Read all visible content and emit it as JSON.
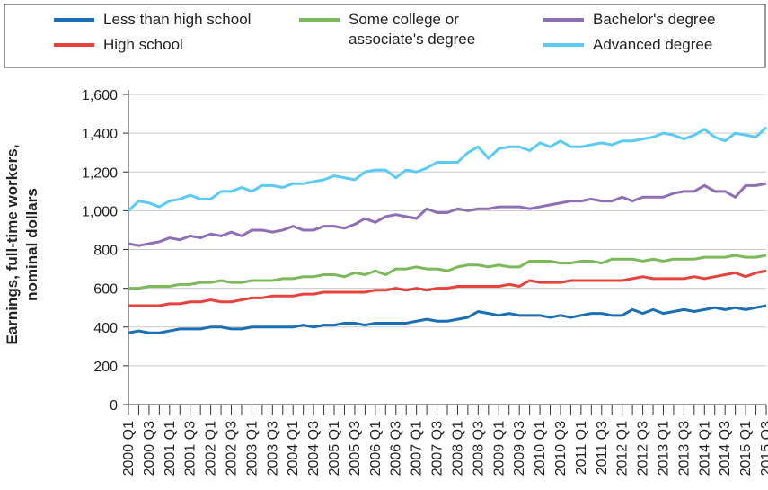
{
  "chart_data": {
    "type": "line",
    "y_label": "Earnings, full-time workers, nominal dollars",
    "categories": [
      "2000 Q1",
      null,
      "2000 Q3",
      null,
      "2001 Q1",
      null,
      "2001 Q3",
      null,
      "2002 Q1",
      null,
      "2002 Q3",
      null,
      "2003 Q1",
      null,
      "2003 Q3",
      null,
      "2004 Q1",
      null,
      "2004 Q3",
      null,
      "2005 Q1",
      null,
      "2005 Q3",
      null,
      "2006 Q1",
      null,
      "2006 Q3",
      null,
      "2007 Q1",
      null,
      "2007 Q3",
      null,
      "2008 Q1",
      null,
      "2008 Q3",
      null,
      "2009 Q1",
      null,
      "2009 Q3",
      null,
      "2010 Q1",
      null,
      "2010 Q3",
      null,
      "2011 Q1",
      null,
      "2011 Q3",
      null,
      "2012 Q1",
      null,
      "2012 Q3",
      null,
      "2013 Q1",
      null,
      "2013 Q3",
      null,
      "2014 Q1",
      null,
      "2014 Q3",
      null,
      "2015 Q1",
      null,
      "2015 Q3"
    ],
    "series": [
      {
        "name": "Less than high school",
        "color": "#1a6fb5",
        "values": [
          370,
          380,
          370,
          370,
          380,
          390,
          390,
          390,
          400,
          400,
          390,
          390,
          400,
          400,
          400,
          400,
          400,
          410,
          400,
          410,
          410,
          420,
          420,
          410,
          420,
          420,
          420,
          420,
          430,
          440,
          430,
          430,
          440,
          450,
          480,
          470,
          460,
          470,
          460,
          460,
          460,
          450,
          460,
          450,
          460,
          470,
          470,
          460,
          460,
          490,
          470,
          490,
          470,
          480,
          490,
          480,
          490,
          500,
          490,
          500,
          490,
          500,
          510
        ]
      },
      {
        "name": "High school",
        "color": "#e8423f",
        "values": [
          510,
          510,
          510,
          510,
          520,
          520,
          530,
          530,
          540,
          530,
          530,
          540,
          550,
          550,
          560,
          560,
          560,
          570,
          570,
          580,
          580,
          580,
          580,
          580,
          590,
          590,
          600,
          590,
          600,
          590,
          600,
          600,
          610,
          610,
          610,
          610,
          610,
          620,
          610,
          640,
          630,
          630,
          630,
          640,
          640,
          640,
          640,
          640,
          640,
          650,
          660,
          650,
          650,
          650,
          650,
          660,
          650,
          660,
          670,
          680,
          660,
          680,
          690
        ]
      },
      {
        "name": "Some college or associate's degree",
        "color": "#7cb95a",
        "values": [
          600,
          600,
          610,
          610,
          610,
          620,
          620,
          630,
          630,
          640,
          630,
          630,
          640,
          640,
          640,
          650,
          650,
          660,
          660,
          670,
          670,
          660,
          680,
          670,
          690,
          670,
          700,
          700,
          710,
          700,
          700,
          690,
          710,
          720,
          720,
          710,
          720,
          710,
          710,
          740,
          740,
          740,
          730,
          730,
          740,
          740,
          730,
          750,
          750,
          750,
          740,
          750,
          740,
          750,
          750,
          750,
          760,
          760,
          760,
          770,
          760,
          760,
          770
        ]
      },
      {
        "name": "Bachelor's degree",
        "color": "#8e6fb4",
        "values": [
          830,
          820,
          830,
          840,
          860,
          850,
          870,
          860,
          880,
          870,
          890,
          870,
          900,
          900,
          890,
          900,
          920,
          900,
          900,
          920,
          920,
          910,
          930,
          960,
          940,
          970,
          980,
          970,
          960,
          1010,
          990,
          990,
          1010,
          1000,
          1010,
          1010,
          1020,
          1020,
          1020,
          1010,
          1020,
          1030,
          1040,
          1050,
          1050,
          1060,
          1050,
          1050,
          1070,
          1050,
          1070,
          1070,
          1070,
          1090,
          1100,
          1100,
          1130,
          1100,
          1100,
          1070,
          1130,
          1130,
          1140
        ]
      },
      {
        "name": "Advanced degree",
        "color": "#5bcbf5",
        "values": [
          1000,
          1050,
          1040,
          1020,
          1050,
          1060,
          1080,
          1060,
          1060,
          1100,
          1100,
          1120,
          1100,
          1130,
          1130,
          1120,
          1140,
          1140,
          1150,
          1160,
          1180,
          1170,
          1160,
          1200,
          1210,
          1210,
          1170,
          1210,
          1200,
          1220,
          1250,
          1250,
          1250,
          1300,
          1330,
          1270,
          1320,
          1330,
          1330,
          1310,
          1350,
          1330,
          1360,
          1330,
          1330,
          1340,
          1350,
          1340,
          1360,
          1360,
          1370,
          1380,
          1400,
          1390,
          1370,
          1390,
          1420,
          1380,
          1360,
          1400,
          1390,
          1380,
          1430
        ]
      }
    ],
    "ylim": [
      0,
      1600
    ],
    "yticks": [
      0,
      200,
      400,
      600,
      800,
      {
        "value": 1000,
        "label": "1,000"
      },
      {
        "value": 1200,
        "label": "1,200"
      },
      {
        "value": 1400,
        "label": "1,400"
      },
      {
        "value": 1600,
        "label": "1,600"
      }
    ],
    "grid": true
  }
}
